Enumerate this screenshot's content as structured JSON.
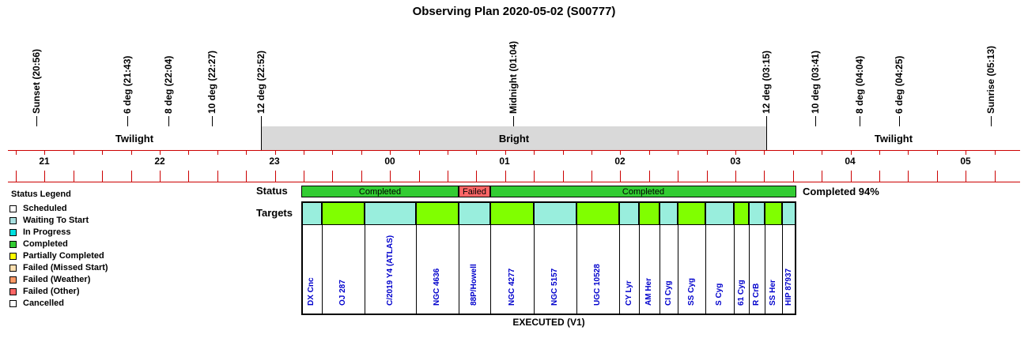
{
  "title": "Observing Plan 2020-05-02 (S00777)",
  "events": [
    {
      "label": "Sunset (20:56)"
    },
    {
      "label": "6 deg (21:43)"
    },
    {
      "label": "8 deg (22:04)"
    },
    {
      "label": "10 deg (22:27)"
    },
    {
      "label": "12 deg (22:52)"
    },
    {
      "label": "Midnight (01:04)"
    },
    {
      "label": "12 deg (03:15)"
    },
    {
      "label": "10 deg (03:41)"
    },
    {
      "label": "8 deg (04:04)"
    },
    {
      "label": "6 deg (04:25)"
    },
    {
      "label": "Sunrise (05:13)"
    }
  ],
  "bands": {
    "twilight_left": "Twilight",
    "bright": "Bright",
    "twilight_right": "Twilight"
  },
  "hours": [
    "21",
    "22",
    "23",
    "00",
    "01",
    "02",
    "03",
    "04",
    "05"
  ],
  "legend": {
    "title": "Status Legend",
    "items": [
      {
        "label": "Scheduled",
        "color": "#ffffff"
      },
      {
        "label": "Waiting To Start",
        "color": "#a8e0e0"
      },
      {
        "label": "In Progress",
        "color": "#00e0e0"
      },
      {
        "label": "Completed",
        "color": "#33cc33"
      },
      {
        "label": "Partially Completed",
        "color": "#ffff00"
      },
      {
        "label": "Failed (Missed Start)",
        "color": "#ffe0b0"
      },
      {
        "label": "Failed (Weather)",
        "color": "#ff9966"
      },
      {
        "label": "Failed (Other)",
        "color": "#ff6666"
      },
      {
        "label": "Cancelled",
        "color": "#ffffff"
      }
    ]
  },
  "status_row": {
    "label": "Status",
    "segments": [
      {
        "label": "Completed",
        "color": "#33cc33"
      },
      {
        "label": "Failed",
        "color": "#ff6666"
      },
      {
        "label": "Completed",
        "color": "#33cc33"
      }
    ],
    "summary": "Completed 94%"
  },
  "targets_row": {
    "label": "Targets",
    "targets": [
      {
        "name": "DX Cnc",
        "color": "#99eedd"
      },
      {
        "name": "OJ 287",
        "color": "#80ff00"
      },
      {
        "name": "C/2019 Y4 (ATLAS)",
        "color": "#99eedd"
      },
      {
        "name": "NGC 4636",
        "color": "#80ff00"
      },
      {
        "name": "88P/Howell",
        "color": "#99eedd"
      },
      {
        "name": "NGC 4277",
        "color": "#80ff00"
      },
      {
        "name": "NGC 5157",
        "color": "#99eedd"
      },
      {
        "name": "UGC 10528",
        "color": "#80ff00"
      },
      {
        "name": "CY Lyr",
        "color": "#99eedd"
      },
      {
        "name": "AM Her",
        "color": "#80ff00"
      },
      {
        "name": "CI Cyg",
        "color": "#99eedd"
      },
      {
        "name": "SS Cyg",
        "color": "#80ff00"
      },
      {
        "name": "S Cyg",
        "color": "#99eedd"
      },
      {
        "name": "61 Cyg",
        "color": "#80ff00"
      },
      {
        "name": "R CrB",
        "color": "#99eedd"
      },
      {
        "name": "SS Her",
        "color": "#80ff00"
      },
      {
        "name": "HIP 87937",
        "color": "#99eedd"
      }
    ]
  },
  "footer": "EXECUTED (V1)",
  "colors": {
    "grid_red": "#cc0000",
    "bright_band": "#d9d9d9",
    "twilight_band": "#ffffff"
  }
}
